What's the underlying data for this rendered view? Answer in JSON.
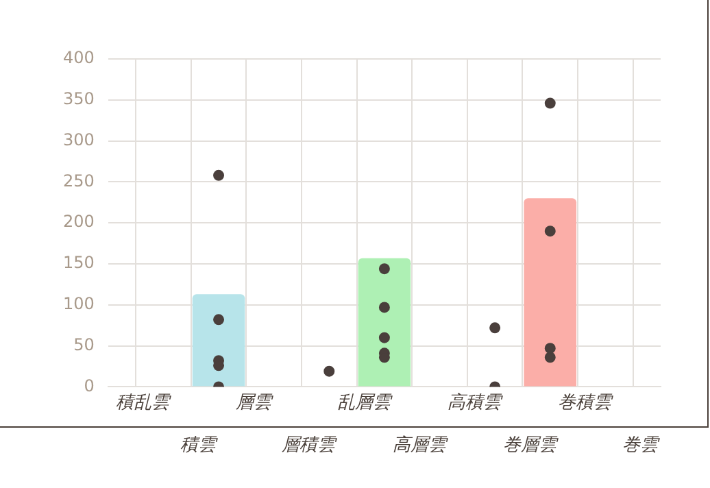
{
  "chart_data": {
    "type": "bar",
    "categories": [
      null,
      "積乱雲",
      "積雲",
      "層雲",
      "層積雲",
      "乱層雲",
      "高層雲",
      "高積雲",
      "巻層雲",
      "巻積雲",
      "巻雲"
    ],
    "series": [
      {
        "values": [
          null,
          null,
          113,
          null,
          null,
          157,
          null,
          null,
          230,
          null,
          null
        ],
        "colors": [
          "#b7e4ea",
          "#b7e4ea",
          "#b7e4ea",
          "#aef0b4",
          "#aef0b4",
          "#aef0b4",
          "#aef0b4",
          "#fbaea8",
          "#fbaea8",
          "#fbaea8",
          "#fbaea8"
        ]
      },
      {
        "type": "scatter",
        "color": "#4a3f3c",
        "x": [
          "積雲",
          "積雲",
          "積雲",
          "積雲",
          "積雲",
          "層積雲",
          "乱層雲",
          "乱層雲",
          "乱層雲",
          "乱層雲",
          "乱層雲",
          "高積雲",
          "高積雲",
          "巻層雲",
          "巻層雲",
          "巻層雲",
          "巻層雲"
        ],
        "values": [
          258,
          82,
          32,
          26,
          0,
          19,
          144,
          97,
          60,
          41,
          36,
          72,
          0,
          346,
          190,
          47,
          36
        ]
      }
    ],
    "ylim": [
      0,
      400
    ],
    "yticks": [
      0,
      50,
      100,
      150,
      200,
      250,
      300,
      350,
      400
    ],
    "grid": true,
    "legend": false,
    "marker": "circle"
  }
}
